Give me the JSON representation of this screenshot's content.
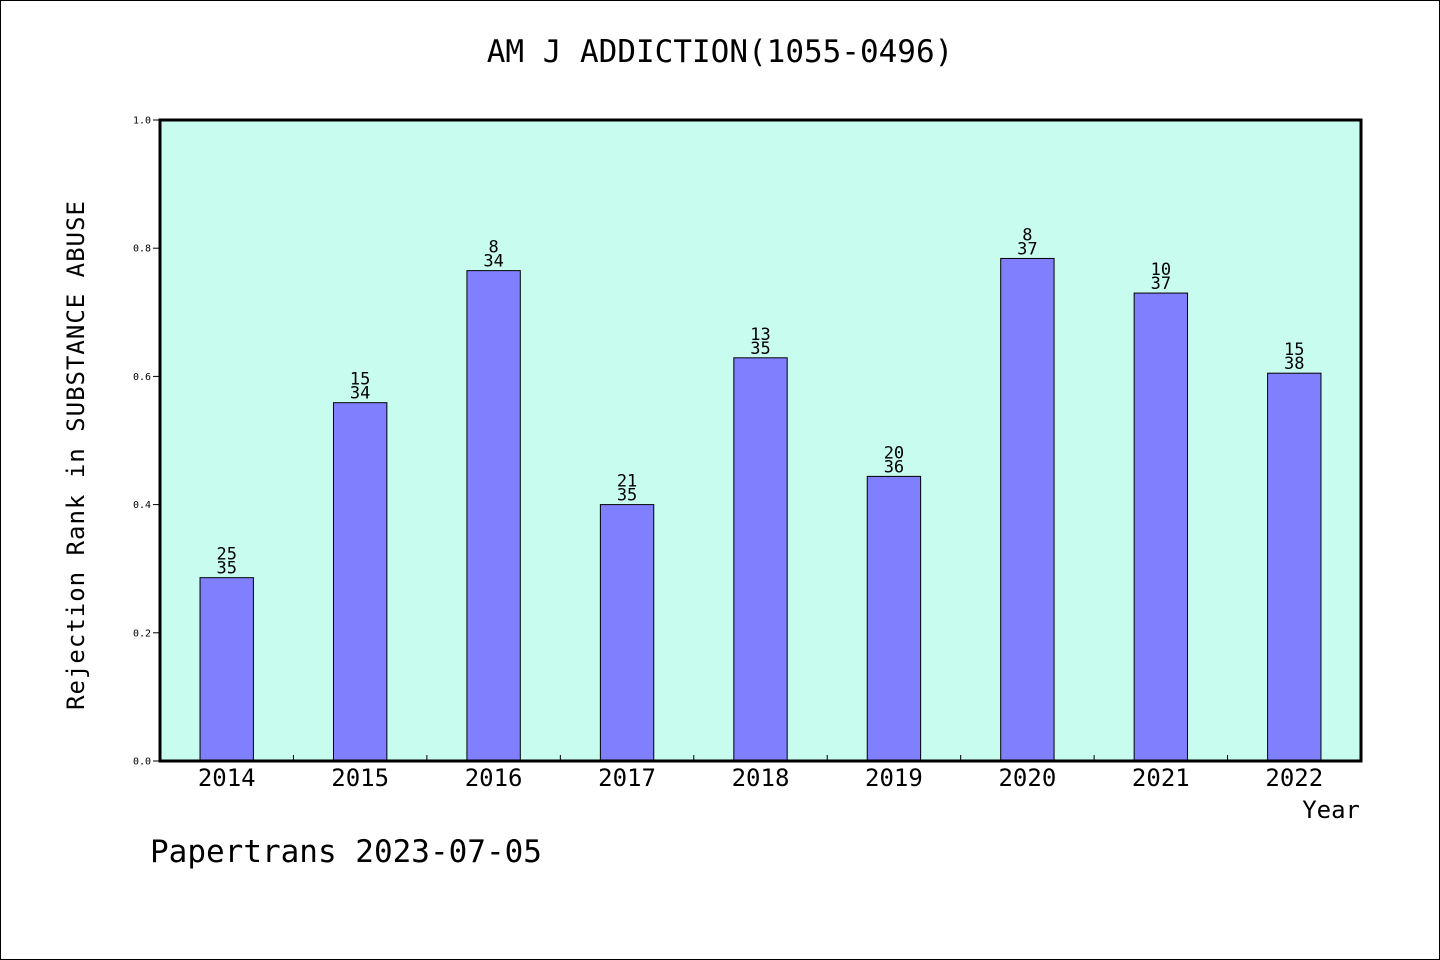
{
  "chart_data": {
    "type": "bar",
    "title": "AM J ADDICTION(1055-0496)",
    "xlabel": "Year",
    "ylabel": "Rejection Rank in SUBSTANCE ABUSE",
    "categories": [
      "2014",
      "2015",
      "2016",
      "2017",
      "2018",
      "2019",
      "2020",
      "2021",
      "2022"
    ],
    "values": [
      0.286,
      0.559,
      0.765,
      0.4,
      0.629,
      0.444,
      0.784,
      0.73,
      0.605
    ],
    "labels_top": [
      "25",
      "15",
      "8",
      "21",
      "13",
      "20",
      "8",
      "10",
      "15"
    ],
    "labels_bottom": [
      "35",
      "34",
      "34",
      "35",
      "35",
      "36",
      "37",
      "37",
      "38"
    ],
    "ylim": [
      0,
      1
    ],
    "yticks": [
      "0.0",
      "0.2",
      "0.4",
      "0.6",
      "0.8",
      "1.0"
    ],
    "grid": false,
    "colors": {
      "plot_bg": "#c8fcee",
      "bar": "#8080ff",
      "bar_edge": "#000000"
    }
  },
  "footer": "Papertrans 2023-07-05"
}
